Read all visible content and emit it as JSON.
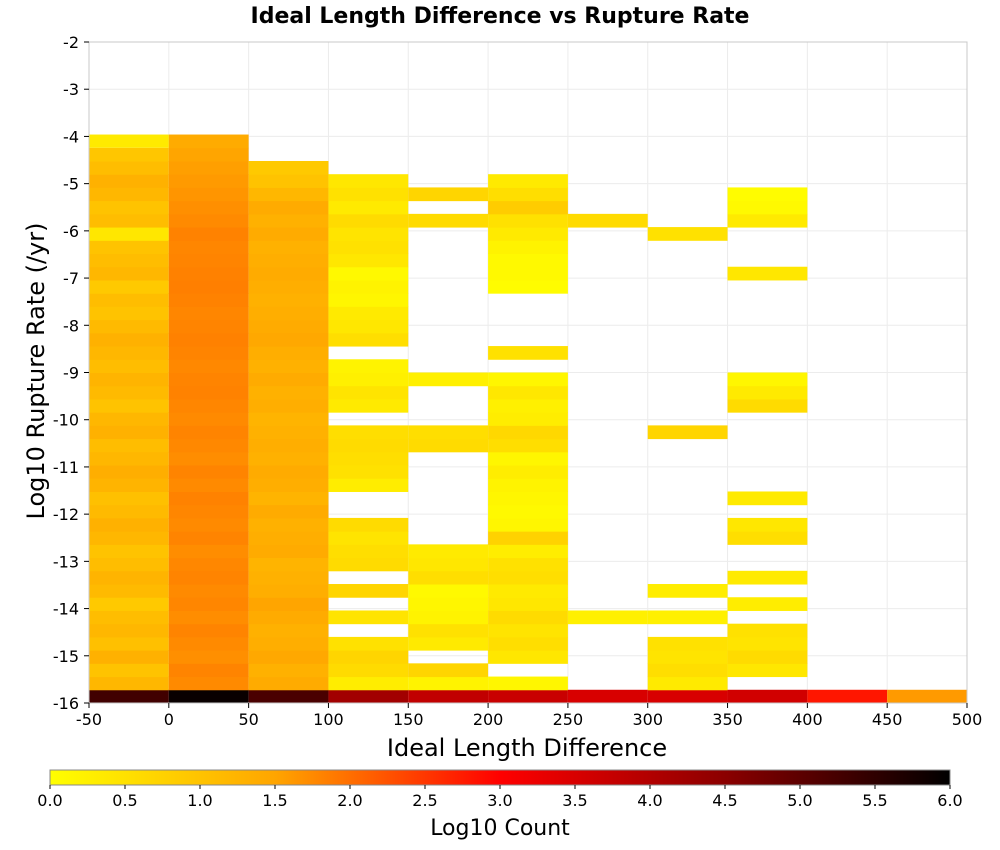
{
  "chart_data": {
    "type": "heatmap",
    "title": "Ideal Length Difference vs Rupture Rate",
    "xlabel": "Ideal Length Difference",
    "ylabel": "Log10 Rupture Rate (/yr)",
    "xlim": [
      -50,
      500
    ],
    "ylim": [
      -16,
      -2
    ],
    "xticks": [
      "-50",
      "0",
      "50",
      "100",
      "150",
      "200",
      "250",
      "300",
      "350",
      "400",
      "450",
      "500"
    ],
    "yticks": [
      "-2",
      "-3",
      "-4",
      "-5",
      "-6",
      "-7",
      "-8",
      "-9",
      "-10",
      "-11",
      "-12",
      "-13",
      "-14",
      "-15",
      "-16"
    ],
    "grid": true,
    "colorbar": {
      "label": "Log10 Count",
      "range": [
        0,
        6
      ],
      "ticks": [
        "0.0",
        "0.5",
        "1.0",
        "1.5",
        "2.0",
        "2.5",
        "3.0",
        "3.5",
        "4.0",
        "4.5",
        "5.0",
        "5.5",
        "6.0"
      ],
      "stops": [
        "#ffff00",
        "#ffa500",
        "#ff0000",
        "#8b0000",
        "#000000"
      ]
    },
    "bin_x_width": 50,
    "bin_y_height": 0.28,
    "columns": [
      {
        "x": -25,
        "ranges": [
          {
            "y0": -16,
            "y1": -15.72,
            "v": 5.3
          },
          {
            "y0": -15.72,
            "y1": -4.24,
            "v": 1.15
          },
          {
            "y0": -4.24,
            "y1": -3.96,
            "v": 0.35
          }
        ],
        "vals": [
          1.2,
          1.0,
          1.3,
          1.05,
          1.2,
          1.1,
          0.9,
          1.15,
          1.25,
          1.1,
          1.0,
          1.2,
          1.3,
          1.15,
          1.05,
          1.25,
          1.35,
          1.2,
          1.1,
          1.3,
          1.2,
          1.0,
          1.15,
          1.25,
          1.1,
          1.2,
          1.3,
          1.15,
          1.0,
          1.1,
          0.9,
          1.2,
          1.1,
          1.0,
          0.4,
          1.1,
          1.0,
          1.2,
          1.3,
          1.1,
          0.95
        ]
      },
      {
        "x": 25,
        "ranges": [
          {
            "y0": -16,
            "y1": -15.72,
            "v": 5.9
          },
          {
            "y0": -15.72,
            "y1": -3.96,
            "v": 1.75
          }
        ],
        "vals": [
          1.75,
          1.8,
          1.7,
          1.75,
          1.8,
          1.72,
          1.78,
          1.75,
          1.8,
          1.77,
          1.72,
          1.8,
          1.75,
          1.78,
          1.82,
          1.75,
          1.8,
          1.72,
          1.76,
          1.8,
          1.75,
          1.78,
          1.82,
          1.8,
          1.76,
          1.8,
          1.83,
          1.8,
          1.78,
          1.82,
          1.85,
          1.83,
          1.8,
          1.78,
          1.82,
          1.75,
          1.7,
          1.65,
          1.6,
          1.55,
          1.5,
          1.4
        ]
      },
      {
        "x": 75,
        "ranges": [
          {
            "y0": -16,
            "y1": -15.72,
            "v": 5.2
          },
          {
            "y0": -15.72,
            "y1": -4.52,
            "v": 1.35
          }
        ],
        "vals": [
          1.4,
          1.3,
          1.45,
          1.35,
          1.3,
          1.4,
          1.5,
          1.35,
          1.3,
          1.25,
          1.4,
          1.35,
          1.3,
          1.4,
          1.25,
          1.35,
          1.4,
          1.3,
          1.35,
          1.3,
          1.25,
          1.35,
          1.3,
          1.4,
          1.3,
          1.35,
          1.45,
          1.4,
          1.35,
          1.3,
          1.35,
          1.4,
          1.35,
          1.3,
          1.4,
          1.3,
          1.4,
          1.2,
          1.0,
          0.9
        ]
      },
      {
        "x": 125,
        "cells": [
          [
            -16,
            4.2
          ],
          [
            -15.72,
            0.3
          ],
          [
            -15.44,
            0.6
          ],
          [
            -15.16,
            0.7
          ],
          [
            -14.88,
            0.5
          ],
          [
            -14.32,
            0.45
          ],
          [
            -13.76,
            0.7
          ],
          [
            -13.2,
            0.6
          ],
          [
            -12.92,
            0.55
          ],
          [
            -12.64,
            0.45
          ],
          [
            -12.36,
            0.6
          ],
          [
            -11.52,
            0.3
          ],
          [
            -11.24,
            0.5
          ],
          [
            -10.96,
            0.55
          ],
          [
            -10.68,
            0.6
          ],
          [
            -10.4,
            0.55
          ],
          [
            -9.84,
            0.35
          ],
          [
            -9.56,
            0.45
          ],
          [
            -9.28,
            0.25
          ],
          [
            -9.0,
            0.2
          ],
          [
            -8.44,
            0.55
          ],
          [
            -8.16,
            0.4
          ],
          [
            -7.88,
            0.35
          ],
          [
            -7.6,
            0.15
          ],
          [
            -7.32,
            0.2
          ],
          [
            -7.04,
            0.1
          ],
          [
            -6.76,
            0.4
          ],
          [
            -6.48,
            0.5
          ],
          [
            -6.2,
            0.45
          ],
          [
            -5.92,
            0.6
          ],
          [
            -5.64,
            0.35
          ],
          [
            -5.36,
            0.5
          ],
          [
            -5.08,
            0.4
          ]
        ]
      },
      {
        "x": 175,
        "cells": [
          [
            -16,
            3.8
          ],
          [
            -15.72,
            0.2
          ],
          [
            -15.44,
            0.7
          ],
          [
            -14.88,
            0.35
          ],
          [
            -14.6,
            0.5
          ],
          [
            -14.32,
            0.2
          ],
          [
            -14.04,
            0.15
          ],
          [
            -13.76,
            0.1
          ],
          [
            -13.48,
            0.55
          ],
          [
            -13.2,
            0.4
          ],
          [
            -12.92,
            0.35
          ],
          [
            -10.68,
            0.6
          ],
          [
            -10.4,
            0.55
          ],
          [
            -9.28,
            0.25
          ],
          [
            -5.92,
            0.6
          ],
          [
            -5.36,
            0.7
          ]
        ]
      },
      {
        "x": 225,
        "cells": [
          [
            -16,
            3.7
          ],
          [
            -15.72,
            0.15
          ],
          [
            -15.16,
            0.4
          ],
          [
            -14.88,
            0.55
          ],
          [
            -14.6,
            0.45
          ],
          [
            -14.32,
            0.6
          ],
          [
            -14.04,
            0.4
          ],
          [
            -13.76,
            0.35
          ],
          [
            -13.48,
            0.55
          ],
          [
            -13.2,
            0.5
          ],
          [
            -12.92,
            0.3
          ],
          [
            -12.64,
            0.75
          ],
          [
            -12.36,
            0.15
          ],
          [
            -12.08,
            0.1
          ],
          [
            -11.8,
            0.15
          ],
          [
            -11.52,
            0.2
          ],
          [
            -11.24,
            0.3
          ],
          [
            -10.96,
            0.15
          ],
          [
            -10.68,
            0.55
          ],
          [
            -10.4,
            0.65
          ],
          [
            -10.12,
            0.3
          ],
          [
            -9.84,
            0.25
          ],
          [
            -9.56,
            0.4
          ],
          [
            -9.28,
            0.15
          ],
          [
            -8.72,
            0.5
          ],
          [
            -7.32,
            0.05
          ],
          [
            -7.04,
            0.1
          ],
          [
            -6.76,
            0.1
          ],
          [
            -6.48,
            0.2
          ],
          [
            -6.2,
            0.35
          ],
          [
            -5.92,
            0.5
          ],
          [
            -5.64,
            0.85
          ],
          [
            -5.36,
            0.55
          ],
          [
            -5.08,
            0.35
          ]
        ]
      },
      {
        "x": 275,
        "cells": [
          [
            -16,
            3.5
          ],
          [
            -14.32,
            0.25
          ],
          [
            -5.92,
            0.6
          ]
        ]
      },
      {
        "x": 325,
        "cells": [
          [
            -16,
            3.5
          ],
          [
            -15.72,
            0.35
          ],
          [
            -15.44,
            0.55
          ],
          [
            -15.16,
            0.45
          ],
          [
            -14.88,
            0.5
          ],
          [
            -14.32,
            0.25
          ],
          [
            -13.76,
            0.3
          ],
          [
            -10.4,
            0.7
          ],
          [
            -6.2,
            0.5
          ]
        ]
      },
      {
        "x": 375,
        "cells": [
          [
            -16,
            3.6
          ],
          [
            -15.44,
            0.4
          ],
          [
            -15.16,
            0.6
          ],
          [
            -14.88,
            0.45
          ],
          [
            -14.6,
            0.5
          ],
          [
            -14.04,
            0.3
          ],
          [
            -13.48,
            0.35
          ],
          [
            -12.64,
            0.55
          ],
          [
            -12.36,
            0.4
          ],
          [
            -11.8,
            0.35
          ],
          [
            -9.84,
            0.6
          ],
          [
            -9.56,
            0.35
          ],
          [
            -9.28,
            0.15
          ],
          [
            -7.04,
            0.4
          ],
          [
            -5.92,
            0.35
          ],
          [
            -5.64,
            0.1
          ],
          [
            -5.36,
            0.05
          ]
        ]
      },
      {
        "x": 425,
        "cells": [
          [
            -16,
            2.8
          ]
        ]
      },
      {
        "x": 475,
        "cells": [
          [
            -16,
            1.6
          ]
        ]
      }
    ]
  }
}
